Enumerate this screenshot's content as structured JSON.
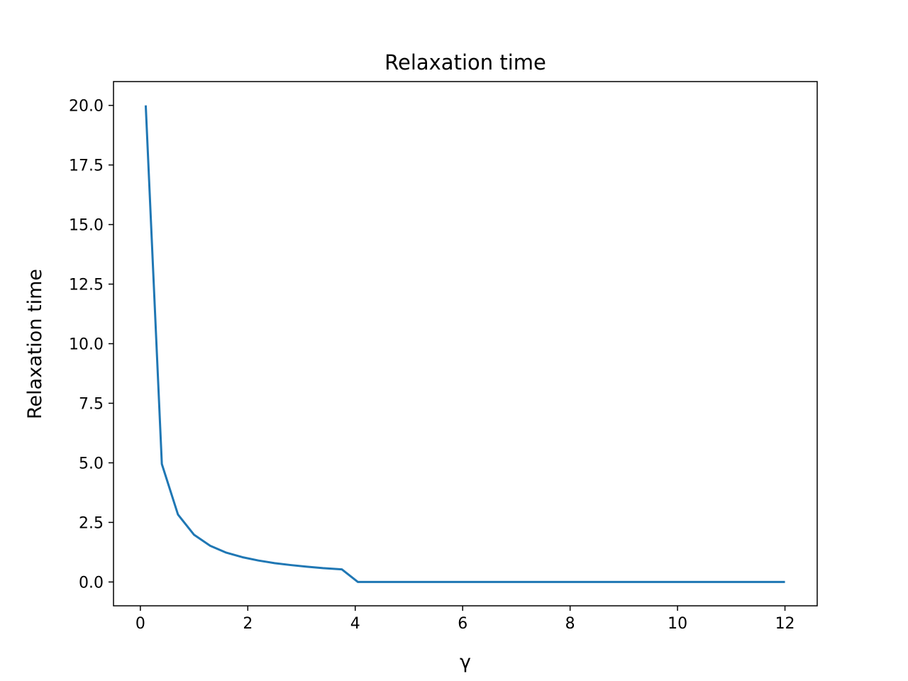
{
  "chart_data": {
    "type": "line",
    "title": "Relaxation time",
    "xlabel": "γ",
    "ylabel": "Relaxation time",
    "xlim": [
      -0.5,
      12.6
    ],
    "ylim": [
      -1.0,
      21.0
    ],
    "xticks": [
      0,
      2,
      4,
      6,
      8,
      10,
      12
    ],
    "xtick_labels": [
      "0",
      "2",
      "4",
      "6",
      "8",
      "10",
      "12"
    ],
    "yticks": [
      0,
      2.5,
      5,
      7.5,
      10,
      12.5,
      15,
      17.5,
      20
    ],
    "ytick_labels": [
      "0.0",
      "2.5",
      "5.0",
      "7.5",
      "10.0",
      "12.5",
      "15.0",
      "17.5",
      "20.0"
    ],
    "grid": false,
    "legend": "none",
    "series": [
      {
        "color": "#1f77b4",
        "x": [
          0.1,
          0.4,
          0.7,
          1.0,
          1.3,
          1.6,
          1.9,
          2.2,
          2.5,
          2.8,
          3.1,
          3.4,
          3.75,
          4.05,
          4.5,
          5.0,
          6.0,
          7.0,
          8.0,
          9.0,
          10.0,
          11.0,
          12.0
        ],
        "y": [
          20.0,
          4.95,
          2.83,
          1.98,
          1.52,
          1.23,
          1.04,
          0.9,
          0.79,
          0.71,
          0.64,
          0.58,
          0.53,
          0.0,
          0.0,
          0.0,
          0.0,
          0.0,
          0.0,
          0.0,
          0.0,
          0.0,
          0.0
        ]
      }
    ]
  }
}
